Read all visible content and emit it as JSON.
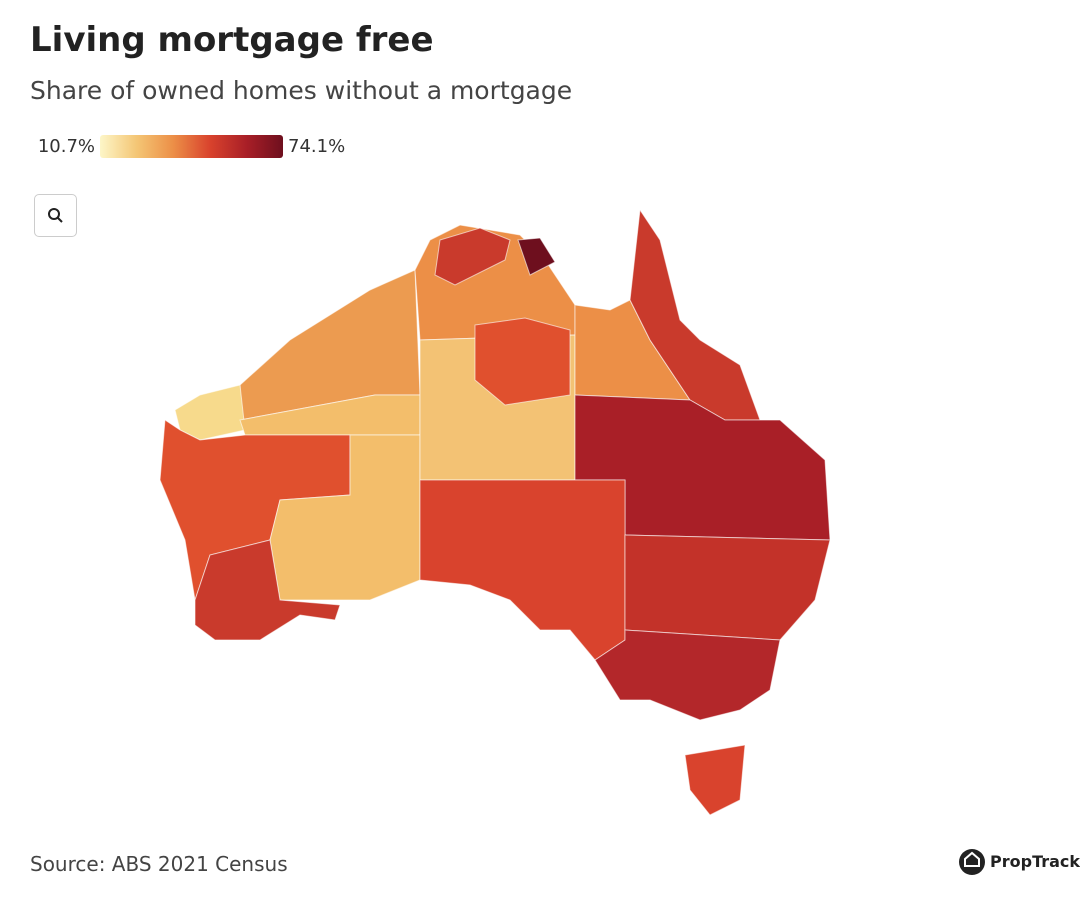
{
  "header": {
    "title": "Living mortgage free",
    "subtitle": "Share of owned homes without a mortgage"
  },
  "legend": {
    "min": {
      "value": 10.7,
      "label": "10.7%"
    },
    "max": {
      "value": 74.1,
      "label": "74.1%"
    },
    "colors": [
      "#fdf6c8",
      "#f4c675",
      "#ec8f47",
      "#d9432d",
      "#a91f27",
      "#6e0f1e"
    ]
  },
  "footer": {
    "source": "Source: ABS 2021 Census",
    "brand": "PropTrack"
  }
}
